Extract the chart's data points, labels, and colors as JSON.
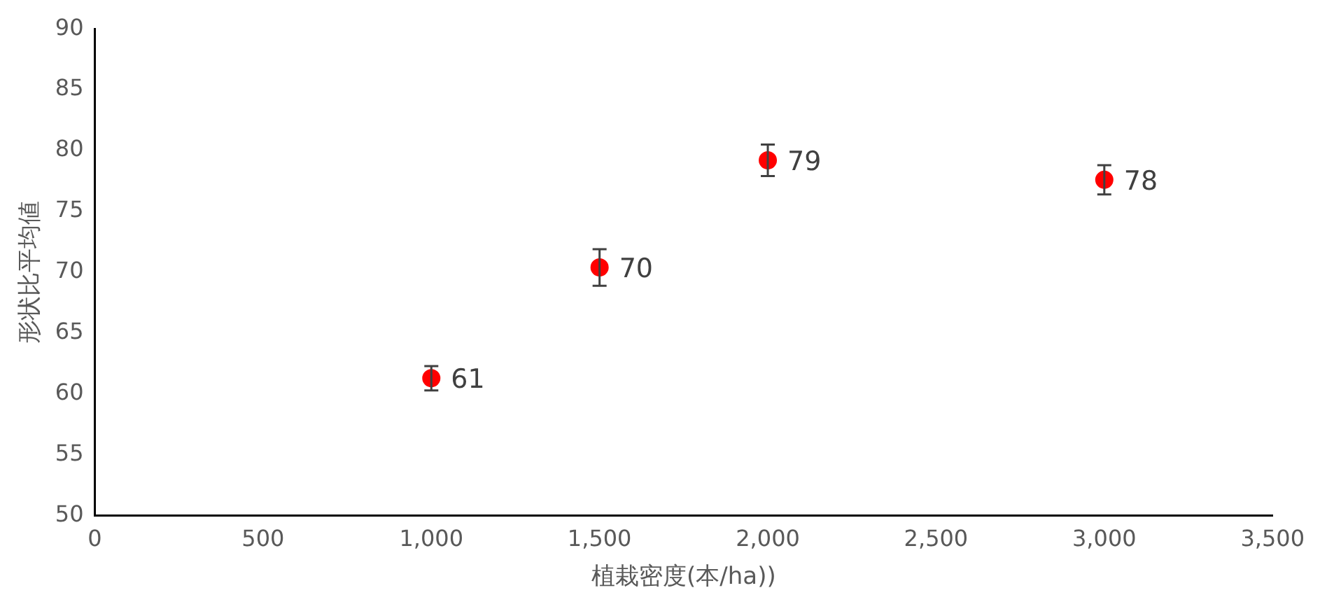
{
  "chart_data": {
    "type": "scatter",
    "xlabel": "植栽密度(本/ha))",
    "ylabel": "形状比平均値",
    "x": [
      1000,
      1500,
      2000,
      3000
    ],
    "values": [
      61.3,
      70.4,
      79.2,
      77.6
    ],
    "errors": [
      1,
      1.5,
      1.3,
      1.2
    ],
    "value_labels": [
      "61",
      "70",
      "79",
      "78"
    ],
    "color": "#ff0000",
    "marker": "circle",
    "grid": false,
    "legend": false,
    "xlim": [
      0,
      3500
    ],
    "xticks": [
      0,
      500,
      {
        "value": 1000,
        "label": "1,000"
      },
      {
        "value": 1500,
        "label": "1,500"
      },
      {
        "value": 2000,
        "label": "2,000"
      },
      {
        "value": 2500,
        "label": "2,500"
      },
      {
        "value": 3000,
        "label": "3,000"
      },
      {
        "value": 3500,
        "label": "3,500"
      }
    ],
    "ylim": [
      50,
      90
    ],
    "yticks": [
      50,
      55,
      60,
      65,
      70,
      75,
      80,
      85,
      90
    ]
  }
}
